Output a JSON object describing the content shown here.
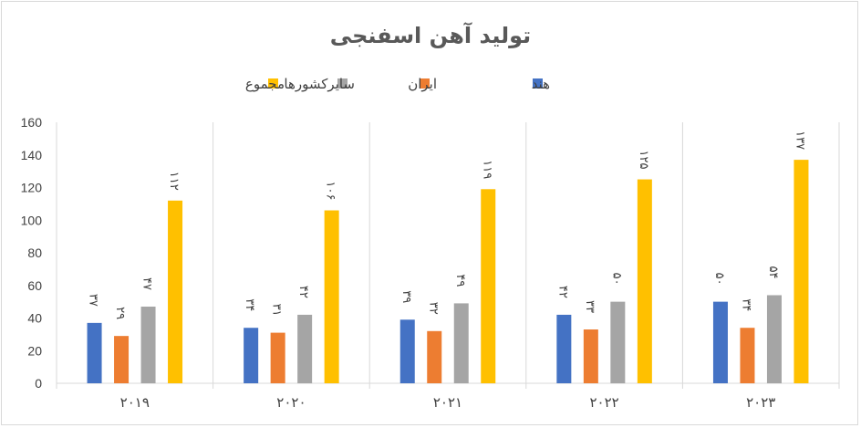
{
  "chart_data": {
    "type": "bar",
    "title": "تولید آهن اسفنجی",
    "categories": [
      "۲۰۱۹",
      "۲۰۲۰",
      "۲۰۲۱",
      "۲۰۲۲",
      "۲۰۲۳"
    ],
    "series": [
      {
        "name": "هند",
        "color": "#4472C4",
        "values": [
          37,
          34,
          39,
          42,
          50
        ],
        "labels": [
          "۳۷",
          "۳۴",
          "۳۹",
          "۴۲",
          "۵۰"
        ]
      },
      {
        "name": "ایران",
        "color": "#ED7D31",
        "values": [
          29,
          31,
          32,
          33,
          34
        ],
        "labels": [
          "۲۹",
          "۳۱",
          "۳۲",
          "۳۳",
          "۳۴"
        ]
      },
      {
        "name": "سایرکشورها",
        "color": "#A5A5A5",
        "values": [
          47,
          42,
          49,
          50,
          54
        ],
        "labels": [
          "۴۷",
          "۴۲",
          "۴۹",
          "۵۰",
          "۵۴"
        ]
      },
      {
        "name": "مجموع",
        "color": "#FFC000",
        "values": [
          112,
          106,
          119,
          125,
          137
        ],
        "labels": [
          "۱۱۲",
          "۱۰۶",
          "۱۱۹",
          "۱۲۵",
          "۱۳۷"
        ]
      }
    ],
    "ylim": [
      0,
      160
    ],
    "yticks": [
      "0",
      "20",
      "40",
      "60",
      "80",
      "100",
      "120",
      "140",
      "160"
    ],
    "ytick_values": [
      0,
      20,
      40,
      60,
      80,
      100,
      120,
      140,
      160
    ],
    "grid": "vertical category separators",
    "legend_position": "top-center",
    "xlabel": "",
    "ylabel": ""
  }
}
